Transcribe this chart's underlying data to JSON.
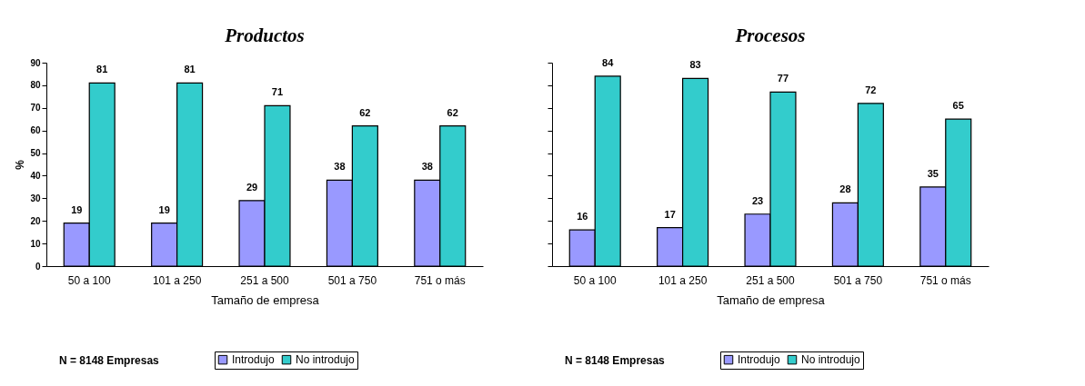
{
  "chart_data": [
    {
      "type": "bar",
      "title": "Productos",
      "categories": [
        "50 a 100",
        "101 a 250",
        "251 a 500",
        "501 a 750",
        "751 o más"
      ],
      "series": [
        {
          "name": "Introdujo",
          "color": "#9999ff",
          "values": [
            19,
            19,
            29,
            38,
            38
          ]
        },
        {
          "name": "No introdujo",
          "color": "#33cccc",
          "values": [
            81,
            81,
            71,
            62,
            62
          ]
        }
      ],
      "xlabel": "Tamaño de empresa",
      "ylabel": "%",
      "ylim": [
        0,
        90
      ],
      "yticks": [
        0,
        10,
        20,
        30,
        40,
        50,
        60,
        70,
        80,
        90
      ],
      "data_labels": true,
      "legend": "bottom",
      "annotations": [
        "N = 8148 Empresas"
      ]
    },
    {
      "type": "bar",
      "title": "Procesos",
      "categories": [
        "50 a 100",
        "101 a 250",
        "251 a 500",
        "501 a 750",
        "751 o más"
      ],
      "series": [
        {
          "name": "Introdujo",
          "color": "#9999ff",
          "values": [
            16,
            17,
            23,
            28,
            35
          ]
        },
        {
          "name": "No introdujo",
          "color": "#33cccc",
          "values": [
            84,
            83,
            77,
            72,
            65
          ]
        }
      ],
      "xlabel": "Tamaño de empresa",
      "ylim": [
        0,
        90
      ],
      "yticks": [
        0,
        10,
        20,
        30,
        40,
        50,
        60,
        70,
        80,
        90
      ],
      "tick_labels": "x",
      "data_labels": true,
      "legend": "bottom",
      "annotations": [
        "N = 8148 Empresas"
      ]
    }
  ]
}
